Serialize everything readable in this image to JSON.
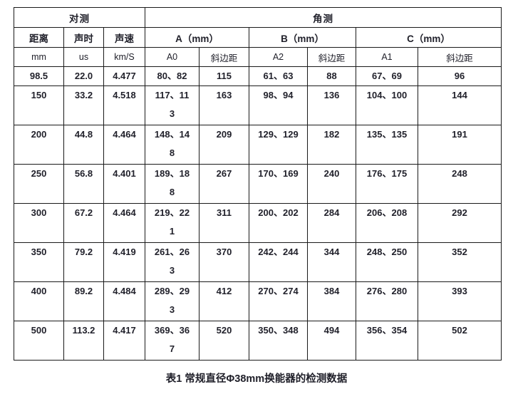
{
  "table": {
    "group_headers": [
      {
        "label": "对测",
        "span": 3
      },
      {
        "label": "角测",
        "span": 6
      }
    ],
    "col_headers": [
      {
        "label": "距离",
        "span": 1
      },
      {
        "label": "声时",
        "span": 1
      },
      {
        "label": "声速",
        "span": 1
      },
      {
        "label": "A（mm）",
        "span": 2
      },
      {
        "label": "B（mm）",
        "span": 2
      },
      {
        "label": "C（mm）",
        "span": 2
      }
    ],
    "sub_headers": [
      "mm",
      "us",
      "km/S",
      "A0",
      "斜边距",
      "A2",
      "斜边距",
      "A1",
      "斜边距"
    ],
    "rows": [
      [
        "98.5",
        "22.0",
        "4.477",
        "80、82",
        "115",
        "61、63",
        "88",
        "67、69",
        "96"
      ],
      [
        "150",
        "33.2",
        "4.518",
        "117、11\n3",
        "163",
        "98、94",
        "136",
        "104、100",
        "144"
      ],
      [
        "200",
        "44.8",
        "4.464",
        "148、14\n8",
        "209",
        "129、129",
        "182",
        "135、135",
        "191"
      ],
      [
        "250",
        "56.8",
        "4.401",
        "189、18\n8",
        "267",
        "170、169",
        "240",
        "176、175",
        "248"
      ],
      [
        "300",
        "67.2",
        "4.464",
        "219、22\n1",
        "311",
        "200、202",
        "284",
        "206、208",
        "292"
      ],
      [
        "350",
        "79.2",
        "4.419",
        "261、26\n3",
        "370",
        "242、244",
        "344",
        "248、250",
        "352"
      ],
      [
        "400",
        "89.2",
        "4.484",
        "289、29\n3",
        "412",
        "270、274",
        "384",
        "276、280",
        "393"
      ],
      [
        "500",
        "113.2",
        "4.417",
        "369、36\n7",
        "520",
        "350、348",
        "494",
        "356、354",
        "502"
      ]
    ],
    "caption": "表1 常规直径Φ38mm换能器的检测数据"
  }
}
